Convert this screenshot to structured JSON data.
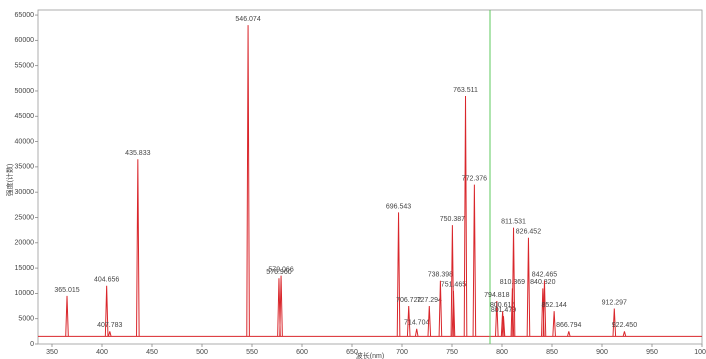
{
  "chart_data": {
    "type": "spectrum",
    "x_label": "波长(nm)",
    "y_label": "强度(计数)",
    "xlim": [
      336,
      1000
    ],
    "ylim": [
      0,
      66000
    ],
    "xticks": [
      350,
      400,
      450,
      500,
      550,
      600,
      650,
      700,
      750,
      800,
      850,
      900,
      950,
      1000
    ],
    "yticks": [
      0,
      5000,
      10000,
      15000,
      20000,
      25000,
      30000,
      35000,
      40000,
      45000,
      50000,
      55000,
      60000,
      65000
    ],
    "color": "#d9262b",
    "cursor_color": "#5cc85c",
    "cursor_x": 788,
    "baseline": 1500,
    "peaks": [
      {
        "x": 365.015,
        "value": 9500
      },
      {
        "x": 404.656,
        "value": 11500
      },
      {
        "x": 407.783,
        "value": 2500
      },
      {
        "x": 435.833,
        "value": 36500
      },
      {
        "x": 546.074,
        "value": 63000
      },
      {
        "x": 576.96,
        "label": "576.960",
        "value": 13000
      },
      {
        "x": 579.066,
        "value": 13500
      },
      {
        "x": 696.543,
        "value": 26000
      },
      {
        "x": 706.722,
        "value": 7500
      },
      {
        "x": 714.704,
        "value": 3000
      },
      {
        "x": 727.294,
        "value": 7500
      },
      {
        "x": 738.398,
        "value": 12500
      },
      {
        "x": 750.387,
        "value": 23500
      },
      {
        "x": 751.465,
        "value": 10500
      },
      {
        "x": 763.511,
        "value": 49000
      },
      {
        "x": 772.376,
        "value": 31500
      },
      {
        "x": 794.818,
        "value": 8500
      },
      {
        "x": 800.616,
        "value": 6500
      },
      {
        "x": 801.479,
        "value": 5500
      },
      {
        "x": 810.369,
        "value": 11000
      },
      {
        "x": 811.531,
        "value": 23000
      },
      {
        "x": 826.452,
        "value": 21000
      },
      {
        "x": 840.82,
        "label": "840.820",
        "value": 11000
      },
      {
        "x": 842.465,
        "value": 12500
      },
      {
        "x": 852.144,
        "value": 6500
      },
      {
        "x": 866.794,
        "value": 2500
      },
      {
        "x": 912.297,
        "value": 7000
      },
      {
        "x": 922.45,
        "label": "922.450",
        "value": 2500
      }
    ]
  }
}
